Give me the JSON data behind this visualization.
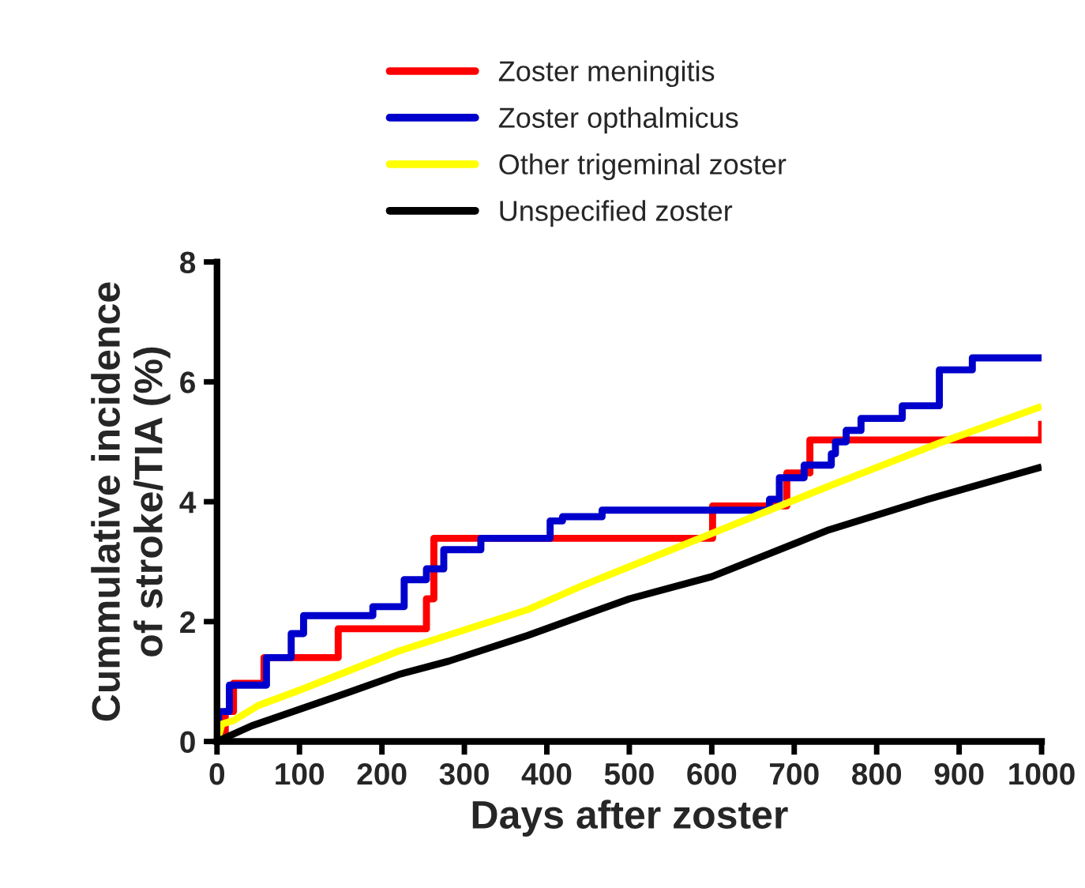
{
  "chart_data": {
    "type": "line",
    "xlabel": "Days after zoster",
    "ylabel": "Cummulative incidence\nof stroke/TIA (%)",
    "xlim": [
      0,
      1000
    ],
    "xticks": [
      0,
      100,
      200,
      300,
      400,
      500,
      600,
      700,
      800,
      900,
      1000
    ],
    "ylim": [
      0,
      8
    ],
    "yticks": [
      0,
      2,
      4,
      6,
      8
    ],
    "grid": false,
    "legend": "top",
    "line_style": "solid",
    "marker": "none",
    "series": [
      {
        "name": "Zoster meningitis",
        "type": "step",
        "color": "#ff0000",
        "x": [
          0,
          10,
          20,
          57,
          147,
          254,
          263,
          601,
          691,
          719,
          1000
        ],
        "values": [
          0,
          0.5,
          0.97,
          1.4,
          1.88,
          2.38,
          3.39,
          3.93,
          4.48,
          5.03,
          5.35
        ]
      },
      {
        "name": "Zoster opthalmicus",
        "type": "step",
        "color": "#0000cc",
        "x": [
          0,
          2,
          15,
          60,
          90,
          105,
          189,
          227,
          254,
          275,
          320,
          404,
          419,
          467,
          670,
          682,
          712,
          745,
          750,
          763,
          781,
          831,
          876,
          916,
          1000
        ],
        "values": [
          0,
          0.5,
          0.94,
          1.4,
          1.8,
          2.1,
          2.25,
          2.7,
          2.88,
          3.2,
          3.39,
          3.68,
          3.75,
          3.86,
          4.04,
          4.4,
          4.61,
          4.8,
          5.0,
          5.19,
          5.39,
          5.6,
          6.2,
          6.4,
          6.4
        ]
      },
      {
        "name": "Other trigeminal zoster",
        "color": "#ffff00",
        "x": [
          0,
          6,
          20,
          50,
          101,
          221,
          377,
          443,
          598,
          742,
          880,
          1000
        ],
        "values": [
          0,
          0.29,
          0.35,
          0.6,
          0.86,
          1.51,
          2.2,
          2.6,
          3.46,
          4.26,
          5.0,
          5.59
        ]
      },
      {
        "name": "Unspecified zoster",
        "color": "#000000",
        "x": [
          0,
          42,
          101,
          162,
          221,
          281,
          377,
          500,
          600,
          742,
          862,
          1000
        ],
        "values": [
          0,
          0.26,
          0.54,
          0.83,
          1.12,
          1.34,
          1.77,
          2.38,
          2.75,
          3.53,
          4.04,
          4.58
        ]
      }
    ]
  }
}
